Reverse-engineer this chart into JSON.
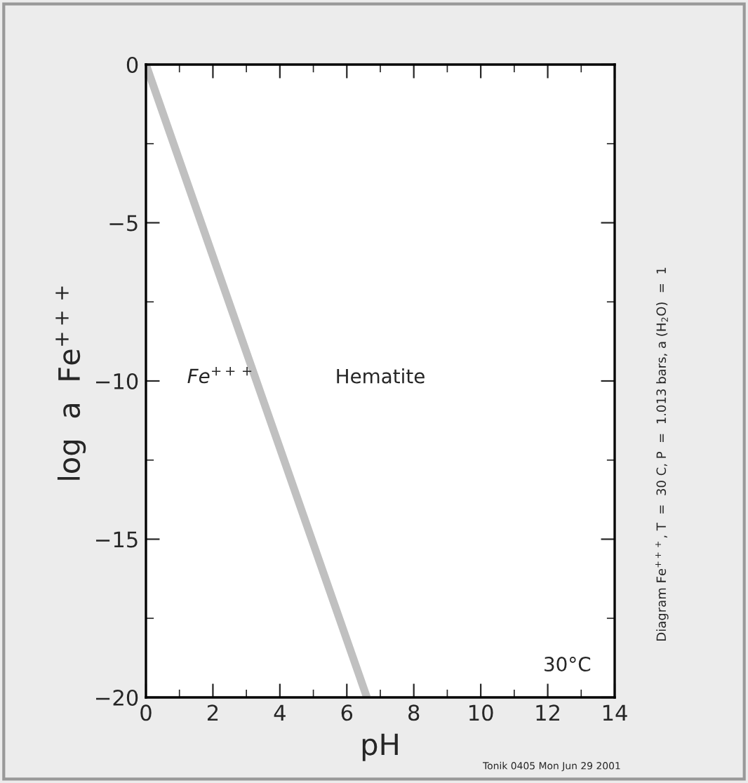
{
  "chart_data": {
    "type": "line",
    "xlabel": "pH",
    "ylabel": "log  a  Fe$^{+++}$",
    "x": [
      0,
      6.6
    ],
    "series": [
      {
        "color": "#c0c0c0",
        "values": [
          0,
          -20
        ]
      }
    ],
    "xlim": [
      0,
      14
    ],
    "ylim": [
      -20,
      0
    ],
    "xticks": [
      0,
      2,
      4,
      6,
      8,
      10,
      12,
      14
    ],
    "yticks": [
      -20,
      -15,
      -10,
      -5,
      0
    ],
    "grid": false,
    "marker": "none",
    "line_style": "solid",
    "annotations": [
      "Fe$^{+++}$",
      "Hematite",
      "30°C",
      "Diagram Fe$^{+++}$, T  =  30 C, P  =  1.013 bars, a (H$_{2}$O)  =  1",
      "Tonik 0405 Mon Jun 29 2001"
    ]
  }
}
